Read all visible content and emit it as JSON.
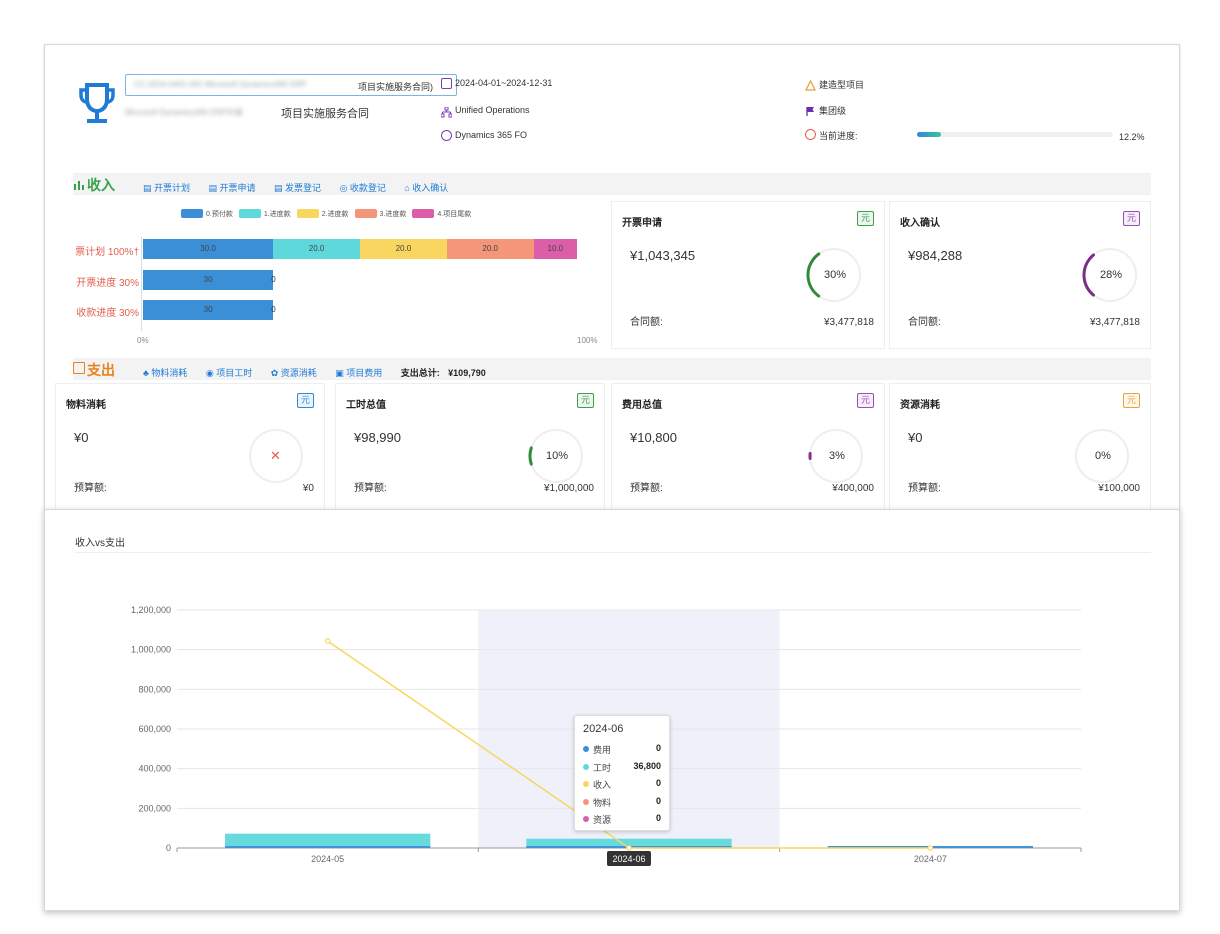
{
  "header": {
    "contract_code": "CC-2024-0401-001 Microsoft Dynamics365 ERP",
    "contract_code_suffix": "项目实施服务合同)",
    "project_name_blur": "Microsoft Dynamics365 ERP升级",
    "project_name_suffix": "项目实施服务合同",
    "date_range": "2024-04-01~2024-12-31",
    "platform": "Unified Operations",
    "product": "Dynamics 365 FO",
    "project_type": "建造型项目",
    "project_level": "集团级",
    "progress_label": "当前进度:",
    "progress_value": "12.2%",
    "progress_fraction": 0.122
  },
  "income": {
    "section_title": "收入",
    "tabs": [
      "开票计划",
      "开票申请",
      "发票登记",
      "收款登记",
      "收入确认"
    ],
    "legend": [
      {
        "label": "0.预付款",
        "color": "#3a8fd6"
      },
      {
        "label": "1.进度款",
        "color": "#5fd8dc"
      },
      {
        "label": "2.进度款",
        "color": "#f9d65f"
      },
      {
        "label": "3.进度款",
        "color": "#f4967a"
      },
      {
        "label": "4.项目尾款",
        "color": "#dc5ea8"
      }
    ],
    "rows": [
      {
        "label": "开票计划  100%",
        "label_cut": "†票计划  100%",
        "segments": [
          30.0,
          20.0,
          20.0,
          20.0,
          10.0
        ],
        "segment_labels": [
          "30.0",
          "20.0",
          "20.0",
          "20.0",
          "10.0"
        ]
      },
      {
        "label": "开票进度  30%",
        "segments": [
          30
        ],
        "segment_labels": [
          "30"
        ],
        "end_label": "0"
      },
      {
        "label": "收款进度  30%",
        "segments": [
          30
        ],
        "segment_labels": [
          "30"
        ],
        "end_label": "0"
      }
    ],
    "axis_start": "0%",
    "axis_end": "100%",
    "cards": [
      {
        "title": "开票申请",
        "unit": "元",
        "amount": "¥1,043,345",
        "percent": "30%",
        "pct": 0.3,
        "ring_color": "#2e8b3a",
        "badge_color": "#3aa14a",
        "foot_label": "合同额:",
        "foot_value": "¥3,477,818"
      },
      {
        "title": "收入确认",
        "unit": "元",
        "amount": "¥984,288",
        "percent": "28%",
        "pct": 0.28,
        "ring_color": "#7b2d8a",
        "badge_color": "#9a4fb5",
        "foot_label": "合同额:",
        "foot_value": "¥3,477,818"
      }
    ]
  },
  "expense": {
    "section_title": "支出",
    "tabs": [
      "物料消耗",
      "项目工时",
      "资源消耗",
      "项目费用"
    ],
    "total_label": "支出总计:",
    "total_value": "¥109,790",
    "cards": [
      {
        "title": "物料消耗",
        "title_cut": "物料消耗",
        "unit": "元",
        "amount": "¥0",
        "percent": "",
        "pct": 0,
        "ring_color": "#e45d4f",
        "badge_color": "#2f88d8",
        "foot_label": "预算额:",
        "foot_value": "¥0",
        "cross": true
      },
      {
        "title": "工时总值",
        "unit": "元",
        "amount": "¥98,990",
        "percent": "10%",
        "pct": 0.1,
        "ring_color": "#2e8b3a",
        "badge_color": "#3aa14a",
        "foot_label": "预算额:",
        "foot_value": "¥1,000,000"
      },
      {
        "title": "费用总值",
        "unit": "元",
        "amount": "¥10,800",
        "percent": "3%",
        "pct": 0.03,
        "ring_color": "#8a2d8a",
        "badge_color": "#9a4fb5",
        "foot_label": "预算额:",
        "foot_value": "¥400,000"
      },
      {
        "title": "资源消耗",
        "unit": "元",
        "amount": "¥0",
        "percent": "0%",
        "pct": 0,
        "ring_color": "#cccccc",
        "badge_color": "#e8a23a",
        "foot_label": "预算额:",
        "foot_value": "¥100,000"
      }
    ]
  },
  "chart_title": "收入vs支出",
  "chart_data": {
    "type": "bar",
    "categories": [
      "2024-05",
      "2024-06",
      "2024-07"
    ],
    "yticks": [
      "0",
      "200,000",
      "400,000",
      "600,000",
      "800,000",
      "1,000,000",
      "1,200,000"
    ],
    "ylim": [
      0,
      1200000
    ],
    "series": [
      {
        "name": "费用",
        "type": "bar",
        "color": "#3a8fd6",
        "values": [
          0,
          0,
          0
        ]
      },
      {
        "name": "工时",
        "type": "bar",
        "color": "#5fd8dc",
        "values": [
          62190,
          36800,
          0
        ]
      },
      {
        "name": "收入",
        "type": "line",
        "color": "#f9d65f",
        "values": [
          1043345,
          0,
          0
        ]
      },
      {
        "name": "物料",
        "type": "bar",
        "color": "#f4967a",
        "values": [
          0,
          0,
          0
        ]
      },
      {
        "name": "资源",
        "type": "bar",
        "color": "#dc5ea8",
        "values": [
          0,
          0,
          0
        ]
      }
    ],
    "tooltip": {
      "title": "2024-06",
      "rows": [
        {
          "name": "费用",
          "value": "0",
          "color": "#3a8fd6"
        },
        {
          "name": "工时",
          "value": "36,800",
          "color": "#5fd8dc"
        },
        {
          "name": "收入",
          "value": "0",
          "color": "#f9d65f"
        },
        {
          "name": "物料",
          "value": "0",
          "color": "#f4967a"
        },
        {
          "name": "资源",
          "value": "0",
          "color": "#dc5ea8"
        }
      ]
    },
    "hover_category": "2024-06"
  }
}
